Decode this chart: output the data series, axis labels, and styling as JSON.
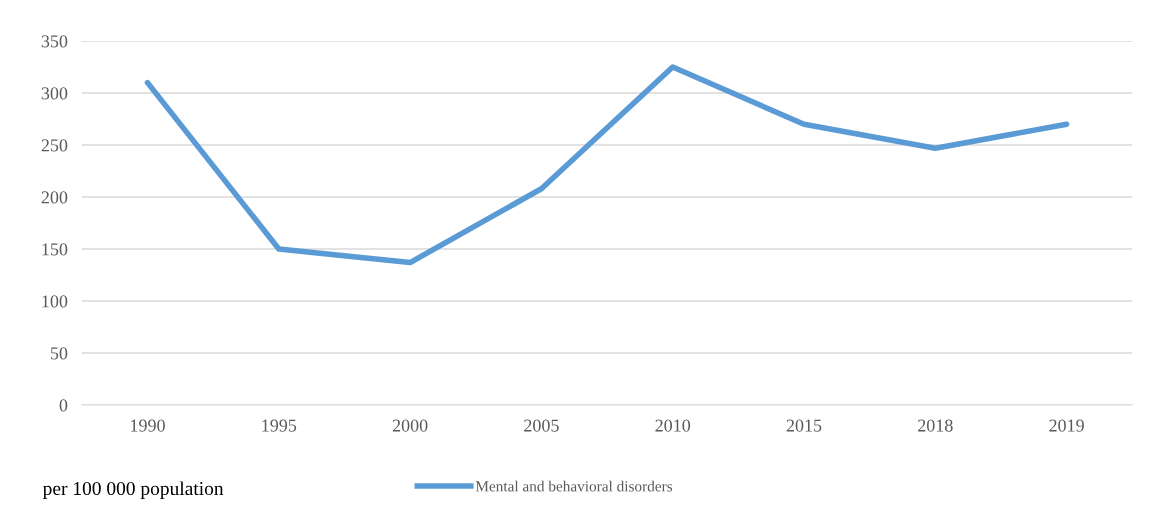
{
  "chart_data": {
    "type": "line",
    "categories": [
      "1990",
      "1995",
      "2000",
      "2005",
      "2010",
      "2015",
      "2018",
      "2019"
    ],
    "series": [
      {
        "name": "Mental and behavioral disorders",
        "color": "#5b9bd5",
        "values": [
          310,
          150,
          137,
          208,
          325,
          270,
          247,
          270
        ]
      }
    ],
    "ylim": [
      0,
      350
    ],
    "yticks": [
      0,
      50,
      100,
      150,
      200,
      250,
      300,
      350
    ],
    "grid": "y",
    "legend": "bottom",
    "marker": "none",
    "line_style": "solid",
    "annotations": [
      "per 100 000 population"
    ]
  }
}
